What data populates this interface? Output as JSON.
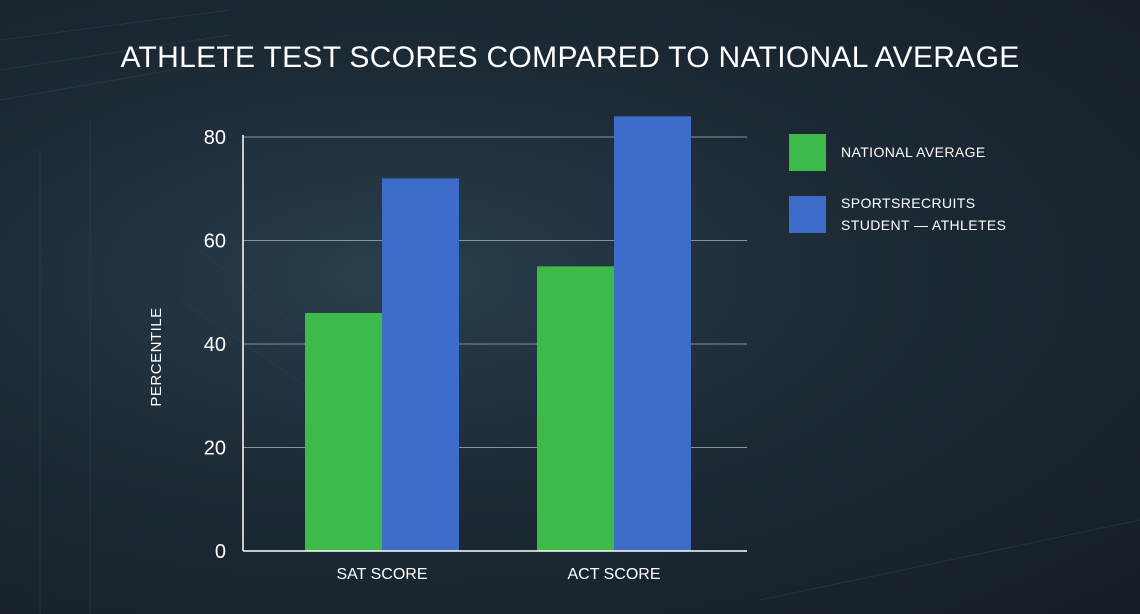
{
  "chart_data": {
    "type": "bar",
    "title": "ATHLETE TEST SCORES COMPARED TO NATIONAL AVERAGE",
    "xlabel": "",
    "ylabel": "PERCENTILE",
    "ylim": [
      0,
      80
    ],
    "yticks": [
      "0",
      "20",
      "40",
      "60",
      "80"
    ],
    "grid": true,
    "legend_position": "right",
    "categories": [
      "SAT SCORE",
      "ACT SCORE"
    ],
    "series": [
      {
        "name": "NATIONAL AVERAGE",
        "color": "#3dba4a",
        "values": [
          46,
          55
        ]
      },
      {
        "name_lines": [
          "SPORTSRECRUITS",
          "STUDENT — ATHLETES"
        ],
        "color": "#3e6cca",
        "values": [
          72,
          84
        ]
      }
    ]
  }
}
